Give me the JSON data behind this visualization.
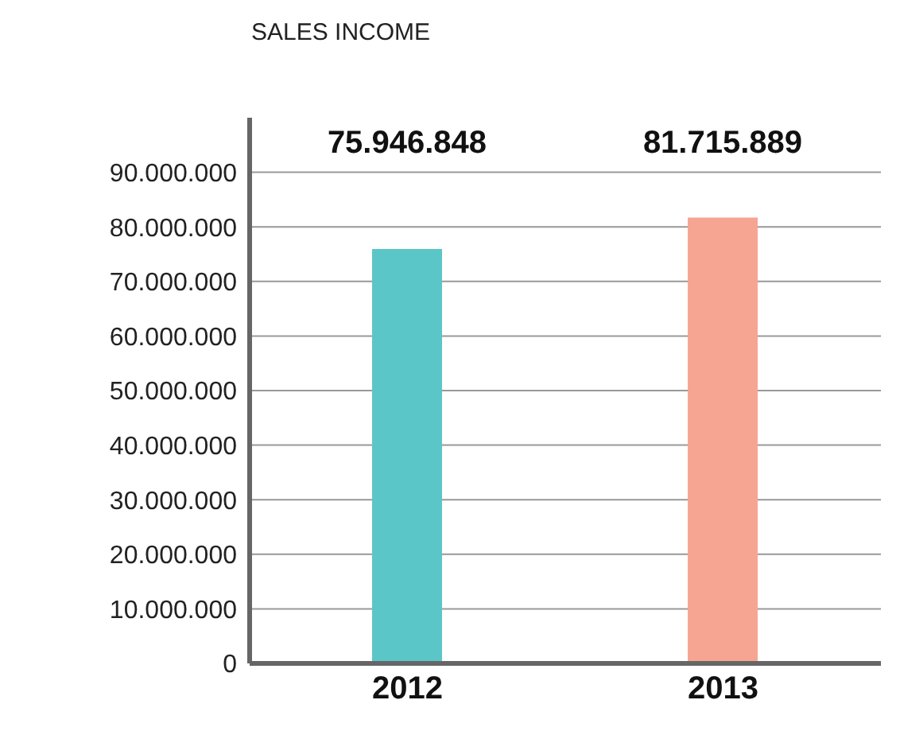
{
  "chart_data": {
    "type": "bar",
    "title": "SALES INCOME",
    "categories": [
      "2012",
      "2013"
    ],
    "values": [
      75946848,
      81715889
    ],
    "colors": [
      "#5bc6c8",
      "#f7a593"
    ],
    "value_labels": [
      "75.946.848",
      "81.715.889"
    ],
    "ylim": [
      0,
      100000000
    ],
    "yticks": [
      {
        "value": 0,
        "label": "0"
      },
      {
        "value": 10000000,
        "label": "10.000.000"
      },
      {
        "value": 20000000,
        "label": "20.000.000"
      },
      {
        "value": 30000000,
        "label": "30.000.000"
      },
      {
        "value": 40000000,
        "label": "40.000.000"
      },
      {
        "value": 50000000,
        "label": "50.000.000"
      },
      {
        "value": 60000000,
        "label": "60.000.000"
      },
      {
        "value": 70000000,
        "label": "70.000.000"
      },
      {
        "value": 80000000,
        "label": "80.000.000"
      },
      {
        "value": 90000000,
        "label": "90.000.000"
      }
    ],
    "grid": "y",
    "legend": false
  }
}
